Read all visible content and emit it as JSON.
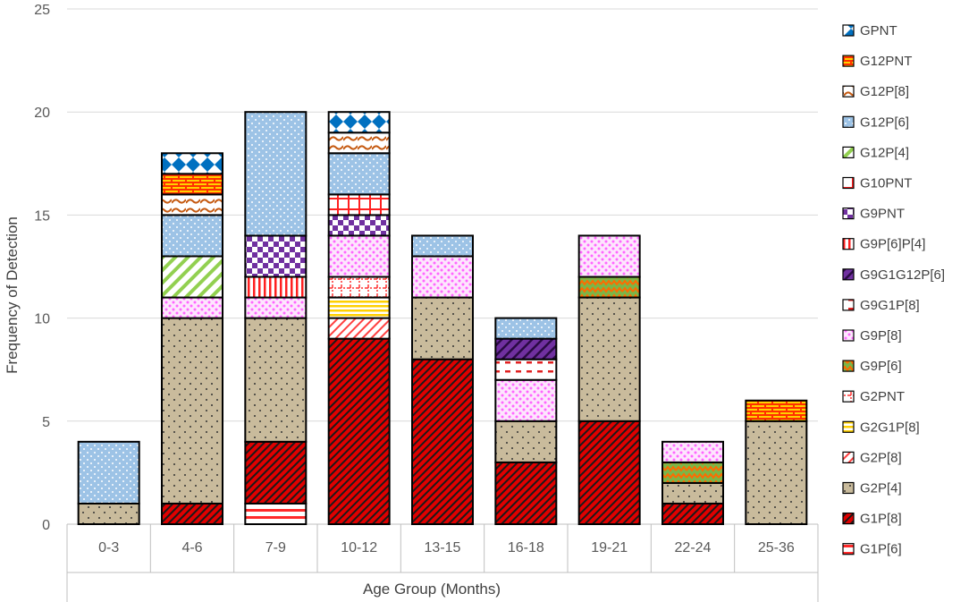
{
  "chart_data": {
    "type": "bar",
    "stacked": true,
    "xlabel": "Age Group (Months)",
    "ylabel": "Frequency of Detection",
    "ylim": [
      0,
      25
    ],
    "yticks": [
      0,
      5,
      10,
      15,
      20,
      25
    ],
    "grid": true,
    "legend_position": "right",
    "categories": [
      "0-3",
      "4-6",
      "7-9",
      "10-12",
      "13-15",
      "16-18",
      "19-21",
      "22-24",
      "25-36"
    ],
    "series": [
      {
        "name": "G1P[6]",
        "pattern": "hlines",
        "color": "#ff2a2a",
        "values": [
          0,
          0,
          1,
          0,
          0,
          0,
          0,
          0,
          0
        ]
      },
      {
        "name": "G1P[8]",
        "pattern": "diagstripes",
        "color": "#d40000",
        "values": [
          0,
          1,
          3,
          9,
          8,
          3,
          5,
          1,
          0
        ]
      },
      {
        "name": "G2P[4]",
        "pattern": "dots",
        "color": "#c9bb9c",
        "values": [
          1,
          9,
          6,
          0,
          3,
          2,
          6,
          1,
          5
        ]
      },
      {
        "name": "G2P[8]",
        "pattern": "lightdiag",
        "color": "#ff4040",
        "values": [
          0,
          0,
          0,
          1,
          0,
          0,
          0,
          0,
          0
        ]
      },
      {
        "name": "G2G1P[8]",
        "pattern": "yellowlines",
        "color": "#ffd000",
        "values": [
          0,
          0,
          0,
          1,
          0,
          0,
          0,
          0,
          0
        ]
      },
      {
        "name": "G2PNT",
        "pattern": "dottedgrid",
        "color": "#ff3030",
        "values": [
          0,
          0,
          0,
          1,
          0,
          0,
          0,
          0,
          0
        ]
      },
      {
        "name": "G9P[6]",
        "pattern": "zigzag",
        "color": "#7ab648",
        "values": [
          0,
          0,
          0,
          0,
          0,
          0,
          1,
          1,
          0
        ]
      },
      {
        "name": "G9P[8]",
        "pattern": "pinkdots",
        "color": "#ff80ff",
        "values": [
          0,
          1,
          1,
          2,
          2,
          2,
          2,
          1,
          0
        ]
      },
      {
        "name": "G9G1P[8]",
        "pattern": "dashes",
        "color": "#e02020",
        "values": [
          0,
          0,
          0,
          0,
          0,
          1,
          0,
          0,
          0
        ]
      },
      {
        "name": "G9G1G12P[6]",
        "pattern": "purplediag",
        "color": "#7030a0",
        "values": [
          0,
          0,
          0,
          0,
          0,
          1,
          0,
          0,
          0
        ]
      },
      {
        "name": "G9P[6]P[4]",
        "pattern": "vlines",
        "color": "#ff2020",
        "values": [
          0,
          0,
          1,
          0,
          0,
          0,
          0,
          0,
          0
        ]
      },
      {
        "name": "G9PNT",
        "pattern": "checker",
        "color": "#7030a0",
        "values": [
          0,
          0,
          2,
          1,
          0,
          0,
          0,
          0,
          0
        ]
      },
      {
        "name": "G10PNT",
        "pattern": "redgrid",
        "color": "#ff2020",
        "values": [
          0,
          0,
          0,
          1,
          0,
          0,
          0,
          0,
          0
        ]
      },
      {
        "name": "G12P[4]",
        "pattern": "greendiag",
        "color": "#92d050",
        "values": [
          0,
          2,
          0,
          0,
          0,
          0,
          0,
          0,
          0
        ]
      },
      {
        "name": "G12P[6]",
        "pattern": "bluedots",
        "color": "#9dc3e6",
        "values": [
          3,
          2,
          6,
          2,
          1,
          1,
          0,
          0,
          0
        ]
      },
      {
        "name": "G12P[8]",
        "pattern": "waves",
        "color": "#c55a11",
        "values": [
          0,
          1,
          0,
          1,
          0,
          0,
          0,
          0,
          0
        ]
      },
      {
        "name": "G12PNT",
        "pattern": "bricks",
        "color": "#ff4000",
        "values": [
          0,
          1,
          0,
          0,
          0,
          0,
          0,
          0,
          1
        ]
      },
      {
        "name": "GPNT",
        "pattern": "diamonds",
        "color": "#0070c0",
        "values": [
          0,
          1,
          0,
          1,
          0,
          0,
          0,
          0,
          0
        ]
      }
    ]
  }
}
